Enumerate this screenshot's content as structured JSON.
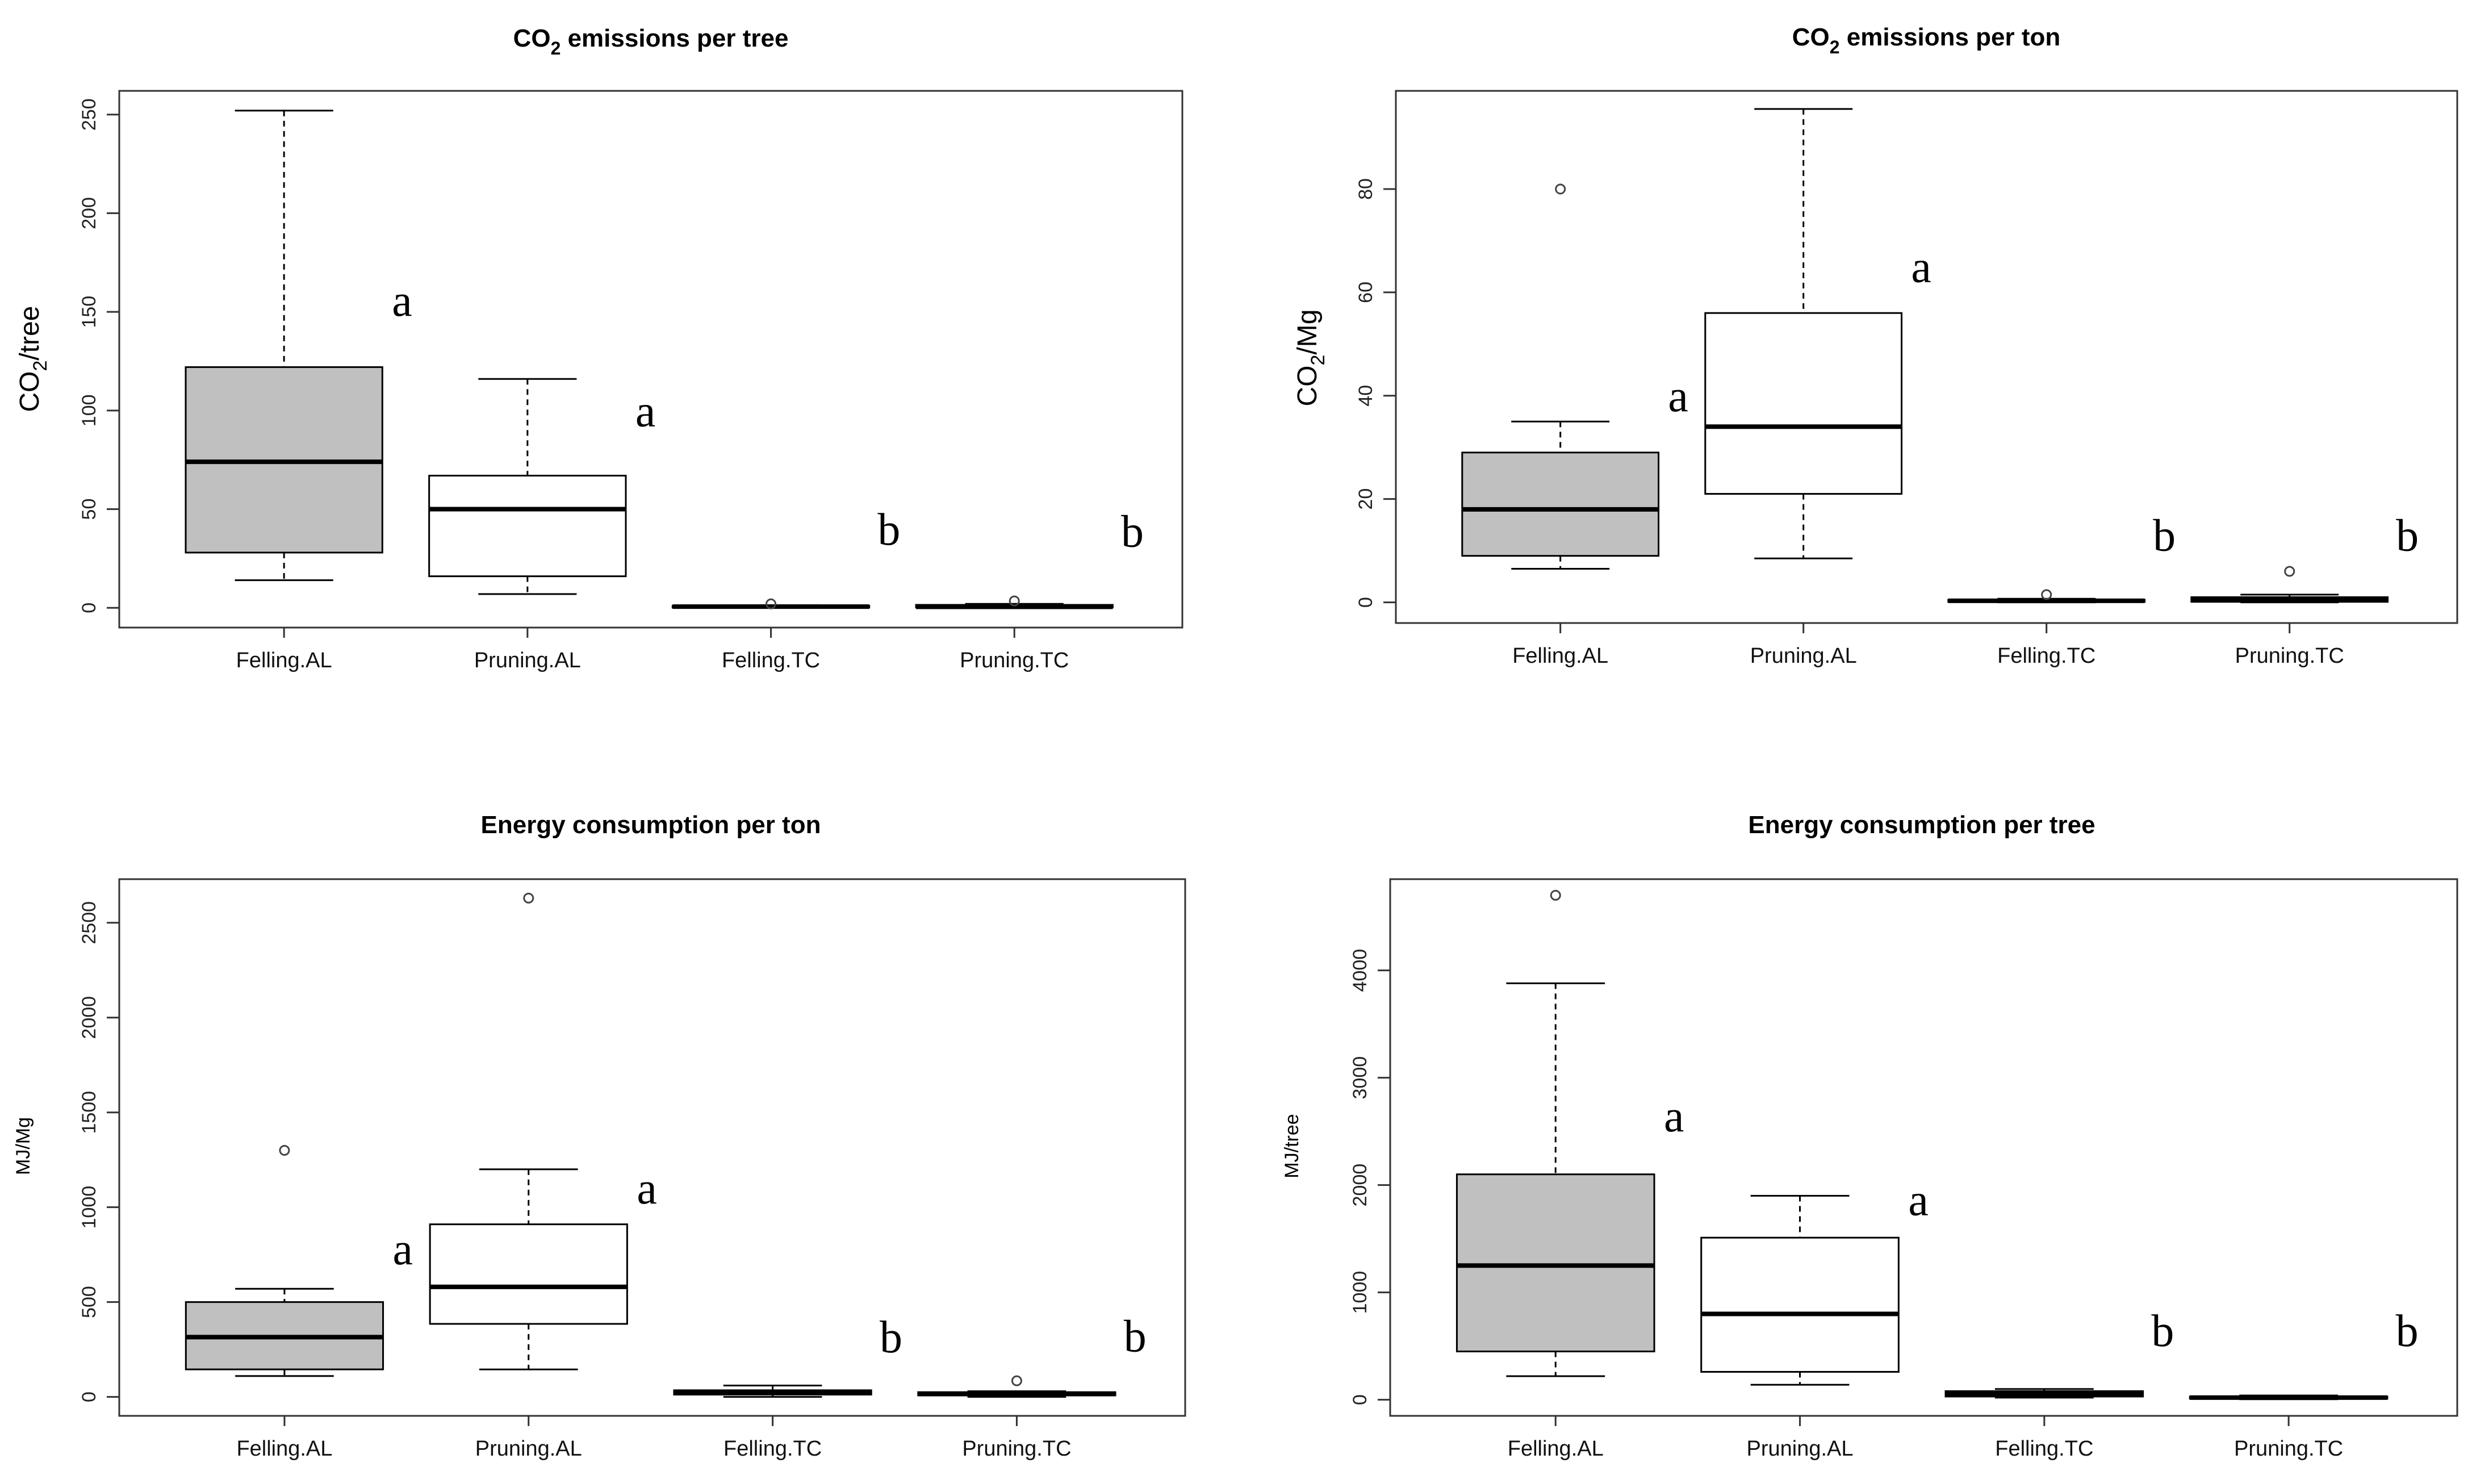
{
  "colors": {
    "al_fill": "#c0c0c0",
    "tc_fill": "#ffffff",
    "pruning_al_fill": "#ffffff",
    "stroke": "#000000",
    "frame": "#333333"
  },
  "chart_data": [
    {
      "type": "boxplot",
      "title": "CO2 emissions per tree",
      "title_main": "CO",
      "title_sub": "2",
      "title_rest": " emissions per tree",
      "ylabel_main": "CO",
      "ylabel_sub": "2",
      "ylabel_rest": "/tree",
      "ylim": [
        -10,
        262
      ],
      "yticks": [
        0,
        50,
        100,
        150,
        200,
        250
      ],
      "categories": [
        "Felling.AL",
        "Pruning.AL",
        "Felling.TC",
        "Pruning.TC"
      ],
      "boxes": [
        {
          "name": "Felling.AL",
          "lower_whisker": 14,
          "q1": 28,
          "median": 74,
          "q3": 122,
          "upper_whisker": 252,
          "outliers": [],
          "fill": "al",
          "letter": "a",
          "letter_y": 148
        },
        {
          "name": "Pruning.AL",
          "lower_whisker": 7,
          "q1": 16,
          "median": 50,
          "q3": 67,
          "upper_whisker": 116,
          "outliers": [],
          "fill": "white",
          "letter": "a",
          "letter_y": 92
        },
        {
          "name": "Felling.TC",
          "lower_whisker": 0,
          "q1": 0.3,
          "median": 0.6,
          "q3": 1,
          "upper_whisker": 1.3,
          "outliers": [
            2
          ],
          "fill": "white",
          "letter": "b",
          "letter_y": 32
        },
        {
          "name": "Pruning.TC",
          "lower_whisker": 0,
          "q1": 0.2,
          "median": 0.5,
          "q3": 1.5,
          "upper_whisker": 2,
          "outliers": [
            3.5
          ],
          "fill": "white",
          "letter": "b",
          "letter_y": 31
        }
      ]
    },
    {
      "type": "boxplot",
      "title": "CO2 emissions per ton",
      "title_main": "CO",
      "title_sub": "2",
      "title_rest": " emissions per ton",
      "ylabel_main": "CO",
      "ylabel_sub": "2",
      "ylabel_rest": "/Mg",
      "ylim": [
        -4,
        99
      ],
      "yticks": [
        0,
        20,
        40,
        60,
        80
      ],
      "categories": [
        "Felling.AL",
        "Pruning.AL",
        "Felling.TC",
        "Pruning.TC"
      ],
      "boxes": [
        {
          "name": "Felling.AL",
          "lower_whisker": 6.5,
          "q1": 9,
          "median": 18,
          "q3": 29,
          "upper_whisker": 35,
          "outliers": [
            80
          ],
          "fill": "al",
          "letter": "a",
          "letter_y": 37
        },
        {
          "name": "Pruning.AL",
          "lower_whisker": 8.5,
          "q1": 21,
          "median": 34,
          "q3": 56,
          "upper_whisker": 95.5,
          "outliers": [],
          "fill": "white",
          "letter": "a",
          "letter_y": 62
        },
        {
          "name": "Felling.TC",
          "lower_whisker": 0,
          "q1": 0.1,
          "median": 0.3,
          "q3": 0.5,
          "upper_whisker": 0.7,
          "outliers": [
            1.5
          ],
          "fill": "white",
          "letter": "b",
          "letter_y": 10
        },
        {
          "name": "Pruning.TC",
          "lower_whisker": 0,
          "q1": 0.1,
          "median": 0.4,
          "q3": 1,
          "upper_whisker": 1.5,
          "outliers": [
            6
          ],
          "fill": "white",
          "letter": "b",
          "letter_y": 10
        }
      ]
    },
    {
      "type": "boxplot",
      "title": "Energy consumption per ton",
      "title_main": "Energy consumption per ton",
      "title_sub": "",
      "title_rest": "",
      "ylabel_main": "MJ/Mg",
      "ylabel_sub": "",
      "ylabel_rest": "",
      "ylabel_small": true,
      "ylim": [
        -100,
        2730
      ],
      "yticks": [
        0,
        500,
        1000,
        1500,
        2000,
        2500
      ],
      "categories": [
        "Felling.AL",
        "Pruning.AL",
        "Felling.TC",
        "Pruning.TC"
      ],
      "boxes": [
        {
          "name": "Felling.AL",
          "lower_whisker": 110,
          "q1": 145,
          "median": 315,
          "q3": 500,
          "upper_whisker": 570,
          "outliers": [
            1300
          ],
          "fill": "al",
          "letter": "a",
          "letter_y": 700
        },
        {
          "name": "Pruning.AL",
          "lower_whisker": 145,
          "q1": 385,
          "median": 580,
          "q3": 910,
          "upper_whisker": 1200,
          "outliers": [
            2630
          ],
          "fill": "white",
          "letter": "a",
          "letter_y": 1020
        },
        {
          "name": "Felling.TC",
          "lower_whisker": 0,
          "q1": 12,
          "median": 22,
          "q3": 35,
          "upper_whisker": 60,
          "outliers": [],
          "fill": "white",
          "letter": "b",
          "letter_y": 235
        },
        {
          "name": "Pruning.TC",
          "lower_whisker": 0,
          "q1": 8,
          "median": 15,
          "q3": 25,
          "upper_whisker": 30,
          "outliers": [
            85
          ],
          "fill": "white",
          "letter": "b",
          "letter_y": 240
        }
      ]
    },
    {
      "type": "boxplot",
      "title": "Energy consumption per tree",
      "title_main": "Energy consumption per tree",
      "title_sub": "",
      "title_rest": "",
      "ylabel_main": "MJ/tree",
      "ylabel_sub": "",
      "ylabel_rest": "",
      "ylabel_small": true,
      "ylim": [
        -150,
        4850
      ],
      "yticks": [
        0,
        1000,
        2000,
        3000,
        4000
      ],
      "categories": [
        "Felling.AL",
        "Pruning.AL",
        "Felling.TC",
        "Pruning.TC"
      ],
      "boxes": [
        {
          "name": "Felling.AL",
          "lower_whisker": 220,
          "q1": 450,
          "median": 1250,
          "q3": 2100,
          "upper_whisker": 3880,
          "outliers": [
            4700
          ],
          "fill": "al",
          "letter": "a",
          "letter_y": 2500
        },
        {
          "name": "Pruning.AL",
          "lower_whisker": 140,
          "q1": 260,
          "median": 800,
          "q3": 1510,
          "upper_whisker": 1900,
          "outliers": [],
          "fill": "white",
          "letter": "a",
          "letter_y": 1720
        },
        {
          "name": "Felling.TC",
          "lower_whisker": 20,
          "q1": 30,
          "median": 55,
          "q3": 80,
          "upper_whisker": 100,
          "outliers": [],
          "fill": "white",
          "letter": "b",
          "letter_y": 500
        },
        {
          "name": "Pruning.TC",
          "lower_whisker": 5,
          "q1": 10,
          "median": 20,
          "q3": 30,
          "upper_whisker": 40,
          "outliers": [],
          "fill": "white",
          "letter": "b",
          "letter_y": 500
        }
      ]
    }
  ]
}
